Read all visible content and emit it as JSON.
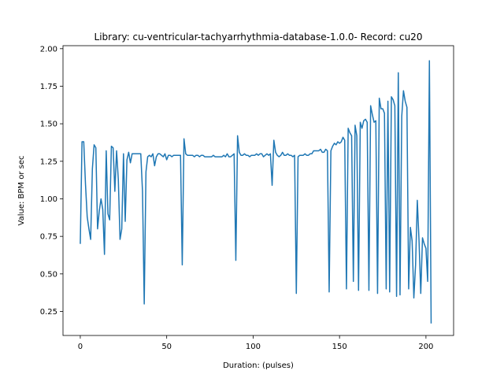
{
  "chart_data": {
    "type": "line",
    "title": "Library: cu-ventricular-tachyarrhythmia-database-1.0.0- Record: cu20",
    "xlabel": "Duration: (pulses)",
    "ylabel": "Value: BPM or sec",
    "xlim": [
      -10,
      216
    ],
    "ylim": [
      0.09,
      2.02
    ],
    "xticks": [
      0,
      50,
      100,
      150,
      200
    ],
    "yticks": [
      0.25,
      0.5,
      0.75,
      1.0,
      1.25,
      1.5,
      1.75,
      2.0
    ],
    "xtick_labels": [
      "0",
      "50",
      "100",
      "150",
      "200"
    ],
    "ytick_labels": [
      "0.25",
      "0.50",
      "0.75",
      "1.00",
      "1.25",
      "1.50",
      "1.75",
      "2.00"
    ],
    "grid": false,
    "line_color": "#1f77b4",
    "series": [
      {
        "values": [
          0.7,
          1.38,
          1.38,
          1.1,
          0.88,
          0.8,
          0.73,
          1.2,
          1.36,
          1.34,
          0.8,
          0.92,
          1.0,
          0.93,
          0.63,
          1.32,
          0.9,
          0.86,
          1.35,
          1.34,
          1.05,
          1.32,
          1.13,
          0.73,
          0.8,
          1.3,
          0.85,
          1.26,
          1.31,
          1.24,
          1.3,
          1.3,
          1.3,
          1.3,
          1.3,
          1.3,
          1.05,
          0.3,
          1.18,
          1.28,
          1.29,
          1.28,
          1.3,
          1.22,
          1.28,
          1.3,
          1.3,
          1.29,
          1.28,
          1.3,
          1.26,
          1.29,
          1.29,
          1.28,
          1.29,
          1.29,
          1.29,
          1.29,
          1.29,
          0.56,
          1.4,
          1.3,
          1.29,
          1.29,
          1.29,
          1.29,
          1.28,
          1.29,
          1.29,
          1.28,
          1.29,
          1.29,
          1.28,
          1.28,
          1.28,
          1.28,
          1.28,
          1.29,
          1.28,
          1.28,
          1.28,
          1.28,
          1.28,
          1.29,
          1.28,
          1.3,
          1.28,
          1.28,
          1.29,
          1.3,
          0.59,
          1.42,
          1.31,
          1.29,
          1.29,
          1.3,
          1.29,
          1.29,
          1.28,
          1.29,
          1.29,
          1.29,
          1.3,
          1.29,
          1.3,
          1.3,
          1.28,
          1.29,
          1.3,
          1.29,
          1.3,
          1.09,
          1.39,
          1.31,
          1.29,
          1.28,
          1.29,
          1.31,
          1.29,
          1.29,
          1.3,
          1.29,
          1.29,
          1.28,
          1.29,
          0.37,
          1.28,
          1.29,
          1.29,
          1.29,
          1.3,
          1.29,
          1.29,
          1.3,
          1.3,
          1.32,
          1.32,
          1.32,
          1.32,
          1.33,
          1.31,
          1.31,
          1.33,
          1.32,
          0.38,
          1.32,
          1.35,
          1.37,
          1.36,
          1.38,
          1.37,
          1.38,
          1.41,
          1.39,
          0.4,
          1.47,
          1.44,
          1.42,
          0.45,
          1.49,
          1.42,
          0.39,
          1.51,
          1.47,
          1.52,
          1.53,
          1.51,
          0.39,
          1.62,
          1.56,
          1.51,
          1.52,
          0.37,
          1.67,
          1.6,
          1.6,
          1.57,
          0.4,
          1.65,
          0.38,
          1.68,
          1.66,
          1.62,
          0.35,
          1.84,
          0.36,
          1.55,
          1.72,
          1.65,
          1.61,
          0.4,
          0.81,
          0.72,
          0.34,
          0.56,
          0.99,
          0.72,
          0.37,
          0.74,
          0.7,
          0.67,
          0.45,
          1.92,
          0.17
        ]
      }
    ]
  }
}
